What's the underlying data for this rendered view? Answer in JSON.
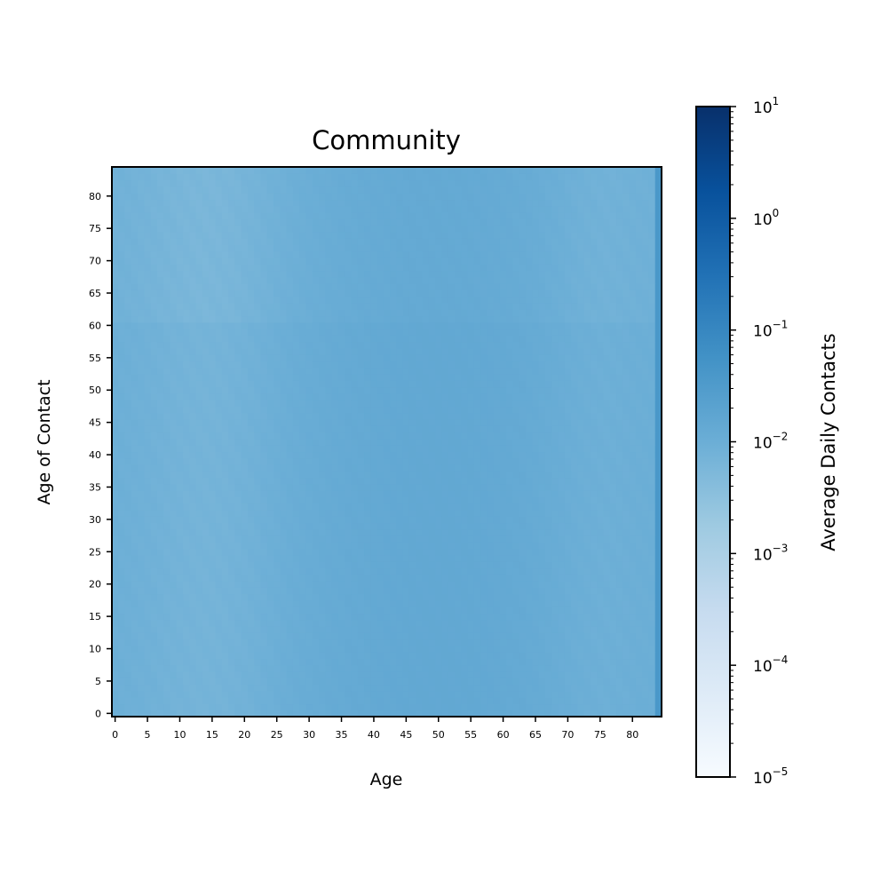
{
  "chart_data": {
    "type": "heatmap",
    "title": "Community",
    "xlabel": "Age",
    "ylabel": "Age of Contact",
    "x_ticks": [
      "0",
      "5",
      "10",
      "15",
      "20",
      "25",
      "30",
      "35",
      "40",
      "45",
      "50",
      "55",
      "60",
      "65",
      "70",
      "75",
      "80"
    ],
    "y_ticks": [
      "0",
      "5",
      "10",
      "15",
      "20",
      "25",
      "30",
      "35",
      "40",
      "45",
      "50",
      "55",
      "60",
      "65",
      "70",
      "75",
      "80"
    ],
    "x_range": [
      0,
      84
    ],
    "y_range": [
      0,
      84
    ],
    "colorscale": "Blues",
    "color_scale_type": "log",
    "color_range": [
      1e-05,
      10
    ],
    "colorbar": {
      "label": "Average Daily Contacts",
      "ticks": [
        {
          "base": "10",
          "exp": "1"
        },
        {
          "base": "10",
          "exp": "0"
        },
        {
          "base": "10",
          "exp": "−1"
        },
        {
          "base": "10",
          "exp": "−2"
        },
        {
          "base": "10",
          "exp": "−3"
        },
        {
          "base": "10",
          "exp": "−4"
        },
        {
          "base": "10",
          "exp": "−5"
        }
      ]
    },
    "value_description": "Nearly uniform field around 0.01 average daily contacts, slightly higher for contact ages 40-60, slightly lower for ages 5-25 and 65-80; last age column higher (~0.04).",
    "base_value": 0.01,
    "last_column_value": 0.04
  }
}
